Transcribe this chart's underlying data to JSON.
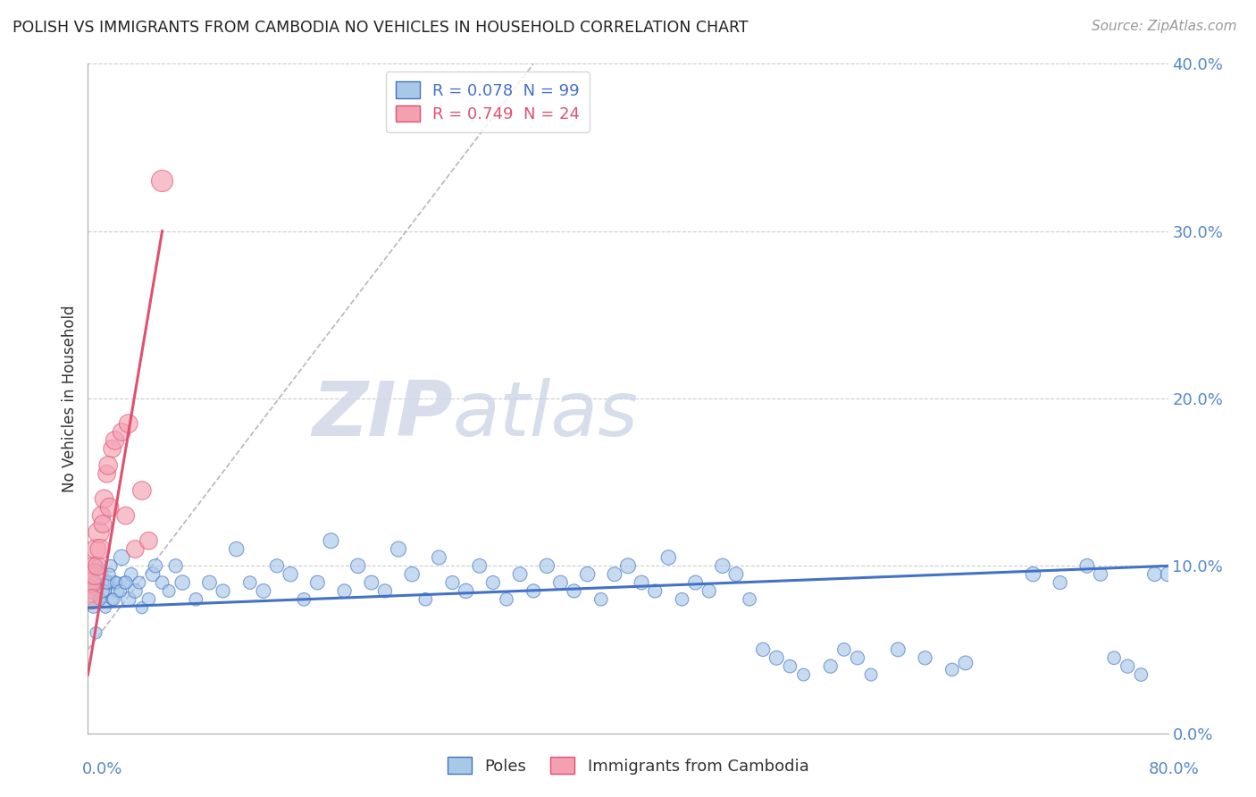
{
  "title": "POLISH VS IMMIGRANTS FROM CAMBODIA NO VEHICLES IN HOUSEHOLD CORRELATION CHART",
  "source": "Source: ZipAtlas.com",
  "ylabel": "No Vehicles in Household",
  "blue_color": "#a8c8e8",
  "pink_color": "#f4a0b0",
  "blue_line_color": "#4472c4",
  "pink_line_color": "#e05070",
  "watermark_zip": "ZIP",
  "watermark_atlas": "atlas",
  "xlim": [
    0,
    80
  ],
  "ylim": [
    0,
    40
  ],
  "ytick_vals": [
    0,
    10,
    20,
    30,
    40
  ],
  "ytick_labels": [
    "0.0%",
    "10.0%",
    "20.0%",
    "30.0%",
    "40.0%"
  ],
  "xtick_labels_show": [
    "0.0%",
    "80.0%"
  ],
  "legend_r1": "R = 0.078  N = 99",
  "legend_r2": "R = 0.749  N = 24",
  "legend_bot1": "Poles",
  "legend_bot2": "Immigrants from Cambodia",
  "poles_x": [
    0.3,
    0.5,
    0.7,
    0.8,
    1.0,
    1.2,
    1.3,
    1.5,
    1.7,
    1.8,
    2.0,
    2.2,
    2.5,
    2.7,
    3.0,
    3.2,
    3.5,
    3.8,
    4.0,
    4.5,
    4.8,
    5.0,
    5.5,
    6.0,
    6.5,
    7.0,
    8.0,
    9.0,
    10.0,
    11.0,
    12.0,
    13.0,
    14.0,
    15.0,
    16.0,
    17.0,
    18.0,
    19.0,
    20.0,
    21.0,
    22.0,
    23.0,
    24.0,
    25.0,
    26.0,
    27.0,
    28.0,
    29.0,
    30.0,
    31.0,
    32.0,
    33.0,
    34.0,
    35.0,
    36.0,
    37.0,
    38.0,
    39.0,
    40.0,
    41.0,
    42.0,
    43.0,
    44.0,
    45.0,
    46.0,
    47.0,
    48.0,
    49.0,
    50.0,
    51.0,
    52.0,
    53.0,
    55.0,
    56.0,
    57.0,
    58.0,
    60.0,
    62.0,
    64.0,
    65.0,
    70.0,
    72.0,
    74.0,
    75.0,
    76.0,
    77.0,
    78.0,
    79.0,
    80.0,
    0.4,
    0.6,
    0.9,
    1.1,
    1.4,
    1.6,
    1.9,
    2.1,
    2.4,
    2.8
  ],
  "poles_y": [
    8.5,
    9.0,
    10.0,
    8.0,
    9.5,
    8.5,
    7.5,
    9.0,
    10.0,
    8.0,
    9.0,
    8.5,
    10.5,
    9.0,
    8.0,
    9.5,
    8.5,
    9.0,
    7.5,
    8.0,
    9.5,
    10.0,
    9.0,
    8.5,
    10.0,
    9.0,
    8.0,
    9.0,
    8.5,
    11.0,
    9.0,
    8.5,
    10.0,
    9.5,
    8.0,
    9.0,
    11.5,
    8.5,
    10.0,
    9.0,
    8.5,
    11.0,
    9.5,
    8.0,
    10.5,
    9.0,
    8.5,
    10.0,
    9.0,
    8.0,
    9.5,
    8.5,
    10.0,
    9.0,
    8.5,
    9.5,
    8.0,
    9.5,
    10.0,
    9.0,
    8.5,
    10.5,
    8.0,
    9.0,
    8.5,
    10.0,
    9.5,
    8.0,
    5.0,
    4.5,
    4.0,
    3.5,
    4.0,
    5.0,
    4.5,
    3.5,
    5.0,
    4.5,
    3.8,
    4.2,
    9.5,
    9.0,
    10.0,
    9.5,
    4.5,
    4.0,
    3.5,
    9.5,
    9.5,
    7.5,
    6.0,
    8.0,
    8.5,
    9.0,
    9.5,
    8.0,
    9.0,
    8.5,
    9.0
  ],
  "poles_sizes": [
    150,
    120,
    100,
    90,
    110,
    130,
    80,
    140,
    100,
    90,
    120,
    110,
    160,
    100,
    140,
    110,
    130,
    100,
    90,
    110,
    130,
    120,
    110,
    100,
    120,
    140,
    110,
    130,
    120,
    140,
    110,
    130,
    120,
    140,
    110,
    130,
    150,
    120,
    140,
    130,
    120,
    150,
    140,
    110,
    130,
    120,
    140,
    130,
    120,
    110,
    130,
    120,
    140,
    130,
    120,
    140,
    110,
    130,
    150,
    130,
    120,
    140,
    110,
    130,
    120,
    140,
    130,
    110,
    120,
    130,
    110,
    100,
    120,
    110,
    120,
    100,
    130,
    120,
    110,
    130,
    140,
    120,
    130,
    120,
    110,
    120,
    110,
    130,
    140,
    80,
    90,
    100,
    110,
    100,
    90,
    100,
    90,
    100,
    110
  ],
  "cambodia_x": [
    0.1,
    0.2,
    0.3,
    0.4,
    0.5,
    0.6,
    0.7,
    0.8,
    0.9,
    1.0,
    1.1,
    1.2,
    1.4,
    1.6,
    1.8,
    2.0,
    2.5,
    3.0,
    3.5,
    4.0,
    5.5,
    2.8,
    4.5,
    1.5
  ],
  "cambodia_y": [
    8.5,
    9.0,
    8.0,
    10.0,
    9.5,
    11.0,
    10.0,
    12.0,
    11.0,
    13.0,
    12.5,
    14.0,
    15.5,
    13.5,
    17.0,
    17.5,
    18.0,
    18.5,
    11.0,
    14.5,
    33.0,
    13.0,
    11.5,
    16.0
  ],
  "cambodia_sizes": [
    350,
    280,
    250,
    200,
    280,
    250,
    220,
    280,
    250,
    220,
    200,
    220,
    200,
    220,
    200,
    220,
    200,
    220,
    200,
    220,
    300,
    200,
    200,
    220
  ],
  "blue_regr_x0": 0,
  "blue_regr_x1": 80,
  "blue_regr_y0": 7.5,
  "blue_regr_y1": 10.0,
  "pink_regr_x0": 0,
  "pink_regr_x1": 5.5,
  "pink_regr_y0": 3.5,
  "pink_regr_y1": 30.0,
  "diag_x0": 0,
  "diag_y0": 5,
  "diag_x1": 33,
  "diag_y1": 40
}
